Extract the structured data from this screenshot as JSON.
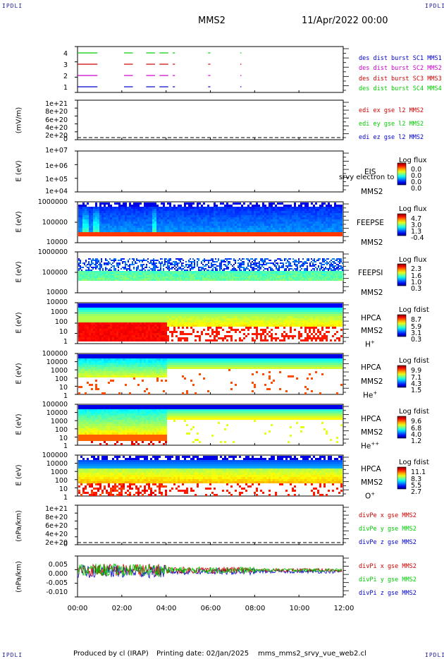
{
  "corners": {
    "tl": "IPDLI",
    "tr": "IPDLI",
    "bl": "IPDLI",
    "br": "IPDLI"
  },
  "header": {
    "spacecraft": "MMS2",
    "date": "11/Apr/2022 00:00"
  },
  "footer": {
    "produced": "Produced by cl (IRAP)",
    "printing": "Printing date: 02/Jan/2025",
    "file": "mms_mms2_srvy_vue_web2.cl"
  },
  "colors": {
    "mms1": "#0000cc",
    "mms2": "#cc00cc",
    "mms3": "#cc0000",
    "mms4": "#00cc00",
    "x": "#cc0000",
    "y": "#00cc00",
    "z": "#0000cc"
  },
  "chart_data": {
    "type": "heatmap",
    "x_ticks": [
      "00:00",
      "02:00",
      "04:00",
      "06:00",
      "08:00",
      "10:00",
      "12:00"
    ],
    "panels": [
      {
        "id": "burst",
        "type": "scatter",
        "ylabel": "",
        "yticks": [
          "4",
          "3",
          "2",
          "1"
        ],
        "legend": [
          "des dist burst SC1 MMS1",
          "des dist burst SC2 MMS2",
          "des dist burst SC3 MMS3",
          "des dist burst SC4 MMS4"
        ],
        "segments_hours": [
          [
            0.0,
            0.9
          ],
          [
            2.1,
            2.5
          ],
          [
            3.1,
            3.5
          ],
          [
            3.7,
            4.1
          ],
          [
            4.3,
            4.4
          ],
          [
            5.9,
            6.0
          ],
          [
            7.35,
            7.4
          ]
        ]
      },
      {
        "id": "edi",
        "type": "line",
        "ylabel": "(mV/m)",
        "yticks": [
          "1e+21",
          "8e+20",
          "6e+20",
          "4e+20",
          "2e+20",
          "0"
        ],
        "legend": [
          "edi ex gse l2 MMS2",
          "edi ey gse l2 MMS2",
          "edi ez gse l2 MMS2"
        ]
      },
      {
        "id": "eis",
        "type": "heatmap",
        "ylabel": "E (eV)",
        "yticks": [
          "1e+07",
          "1e+06",
          "1e+05",
          "1e+04"
        ],
        "inst": "EIS",
        "sc": "MMS2",
        "extra": "srvy electron to",
        "cb_title": "Log flux",
        "cb_values": [
          "0.0",
          "0.0",
          "0.0",
          "0.0"
        ]
      },
      {
        "id": "feepse",
        "type": "heatmap",
        "ylabel": "E (eV)",
        "yticks": [
          "1000000",
          "100000",
          "10000"
        ],
        "inst": "FEEPSE",
        "sc": "MMS2",
        "cb_title": "Log flux",
        "cb_values": [
          "4.7",
          "3.0",
          "1.3",
          "-0.4"
        ]
      },
      {
        "id": "feepsi",
        "type": "heatmap",
        "ylabel": "E (eV)",
        "yticks": [
          "1000000",
          "100000",
          "10000"
        ],
        "inst": "FEEPSI",
        "sc": "MMS2",
        "cb_title": "Log flux",
        "cb_values": [
          "2.3",
          "1.6",
          "1.0",
          "0.3"
        ]
      },
      {
        "id": "hpca_h",
        "type": "heatmap",
        "ylabel": "E (eV)",
        "yticks": [
          "10000",
          "1000",
          "100",
          "10",
          "1"
        ],
        "inst": "HPCA",
        "sc": "MMS2",
        "species": "H",
        "charge": "+",
        "cb_title": "Log fdist",
        "cb_values": [
          "8.7",
          "5.9",
          "3.1",
          "0.3"
        ]
      },
      {
        "id": "hpca_he",
        "type": "heatmap",
        "ylabel": "E (eV)",
        "yticks": [
          "100000",
          "10000",
          "1000",
          "100",
          "10",
          "1"
        ],
        "inst": "HPCA",
        "sc": "MMS2",
        "species": "He",
        "charge": "+",
        "cb_title": "Log fdist",
        "cb_values": [
          "9.9",
          "7.1",
          "4.3",
          "1.5"
        ]
      },
      {
        "id": "hpca_he2",
        "type": "heatmap",
        "ylabel": "E (eV)",
        "yticks": [
          "100000",
          "10000",
          "1000",
          "100",
          "10",
          "1"
        ],
        "inst": "HPCA",
        "sc": "MMS2",
        "species": "He",
        "charge": "++",
        "cb_title": "Log fdist",
        "cb_values": [
          "9.6",
          "6.8",
          "4.0",
          "1.2"
        ]
      },
      {
        "id": "hpca_o",
        "type": "heatmap",
        "ylabel": "E (eV)",
        "yticks": [
          "100000",
          "10000",
          "1000",
          "100",
          "10",
          "1"
        ],
        "inst": "HPCA",
        "sc": "MMS2",
        "species": "O",
        "charge": "+",
        "cb_title": "Log fdist",
        "cb_values": [
          "11.1",
          "8.3",
          "5.5",
          "2.7"
        ]
      },
      {
        "id": "divpe",
        "type": "line",
        "ylabel": "(nPa/km)",
        "yticks": [
          "1e+21",
          "8e+20",
          "6e+20",
          "4e+20",
          "2e+20",
          "0"
        ],
        "legend": [
          "divPe x gse MMS2",
          "divPe y gse MMS2",
          "divPe z gse MMS2"
        ]
      },
      {
        "id": "divpi",
        "type": "line",
        "ylabel": "(nPa/km)",
        "yticks": [
          "0.005",
          "0.000",
          "-0.005",
          "-0.010"
        ],
        "legend": [
          "divPi x gse MMS2",
          "divPi y gse MMS2",
          "divPi z gse MMS2"
        ]
      }
    ]
  }
}
